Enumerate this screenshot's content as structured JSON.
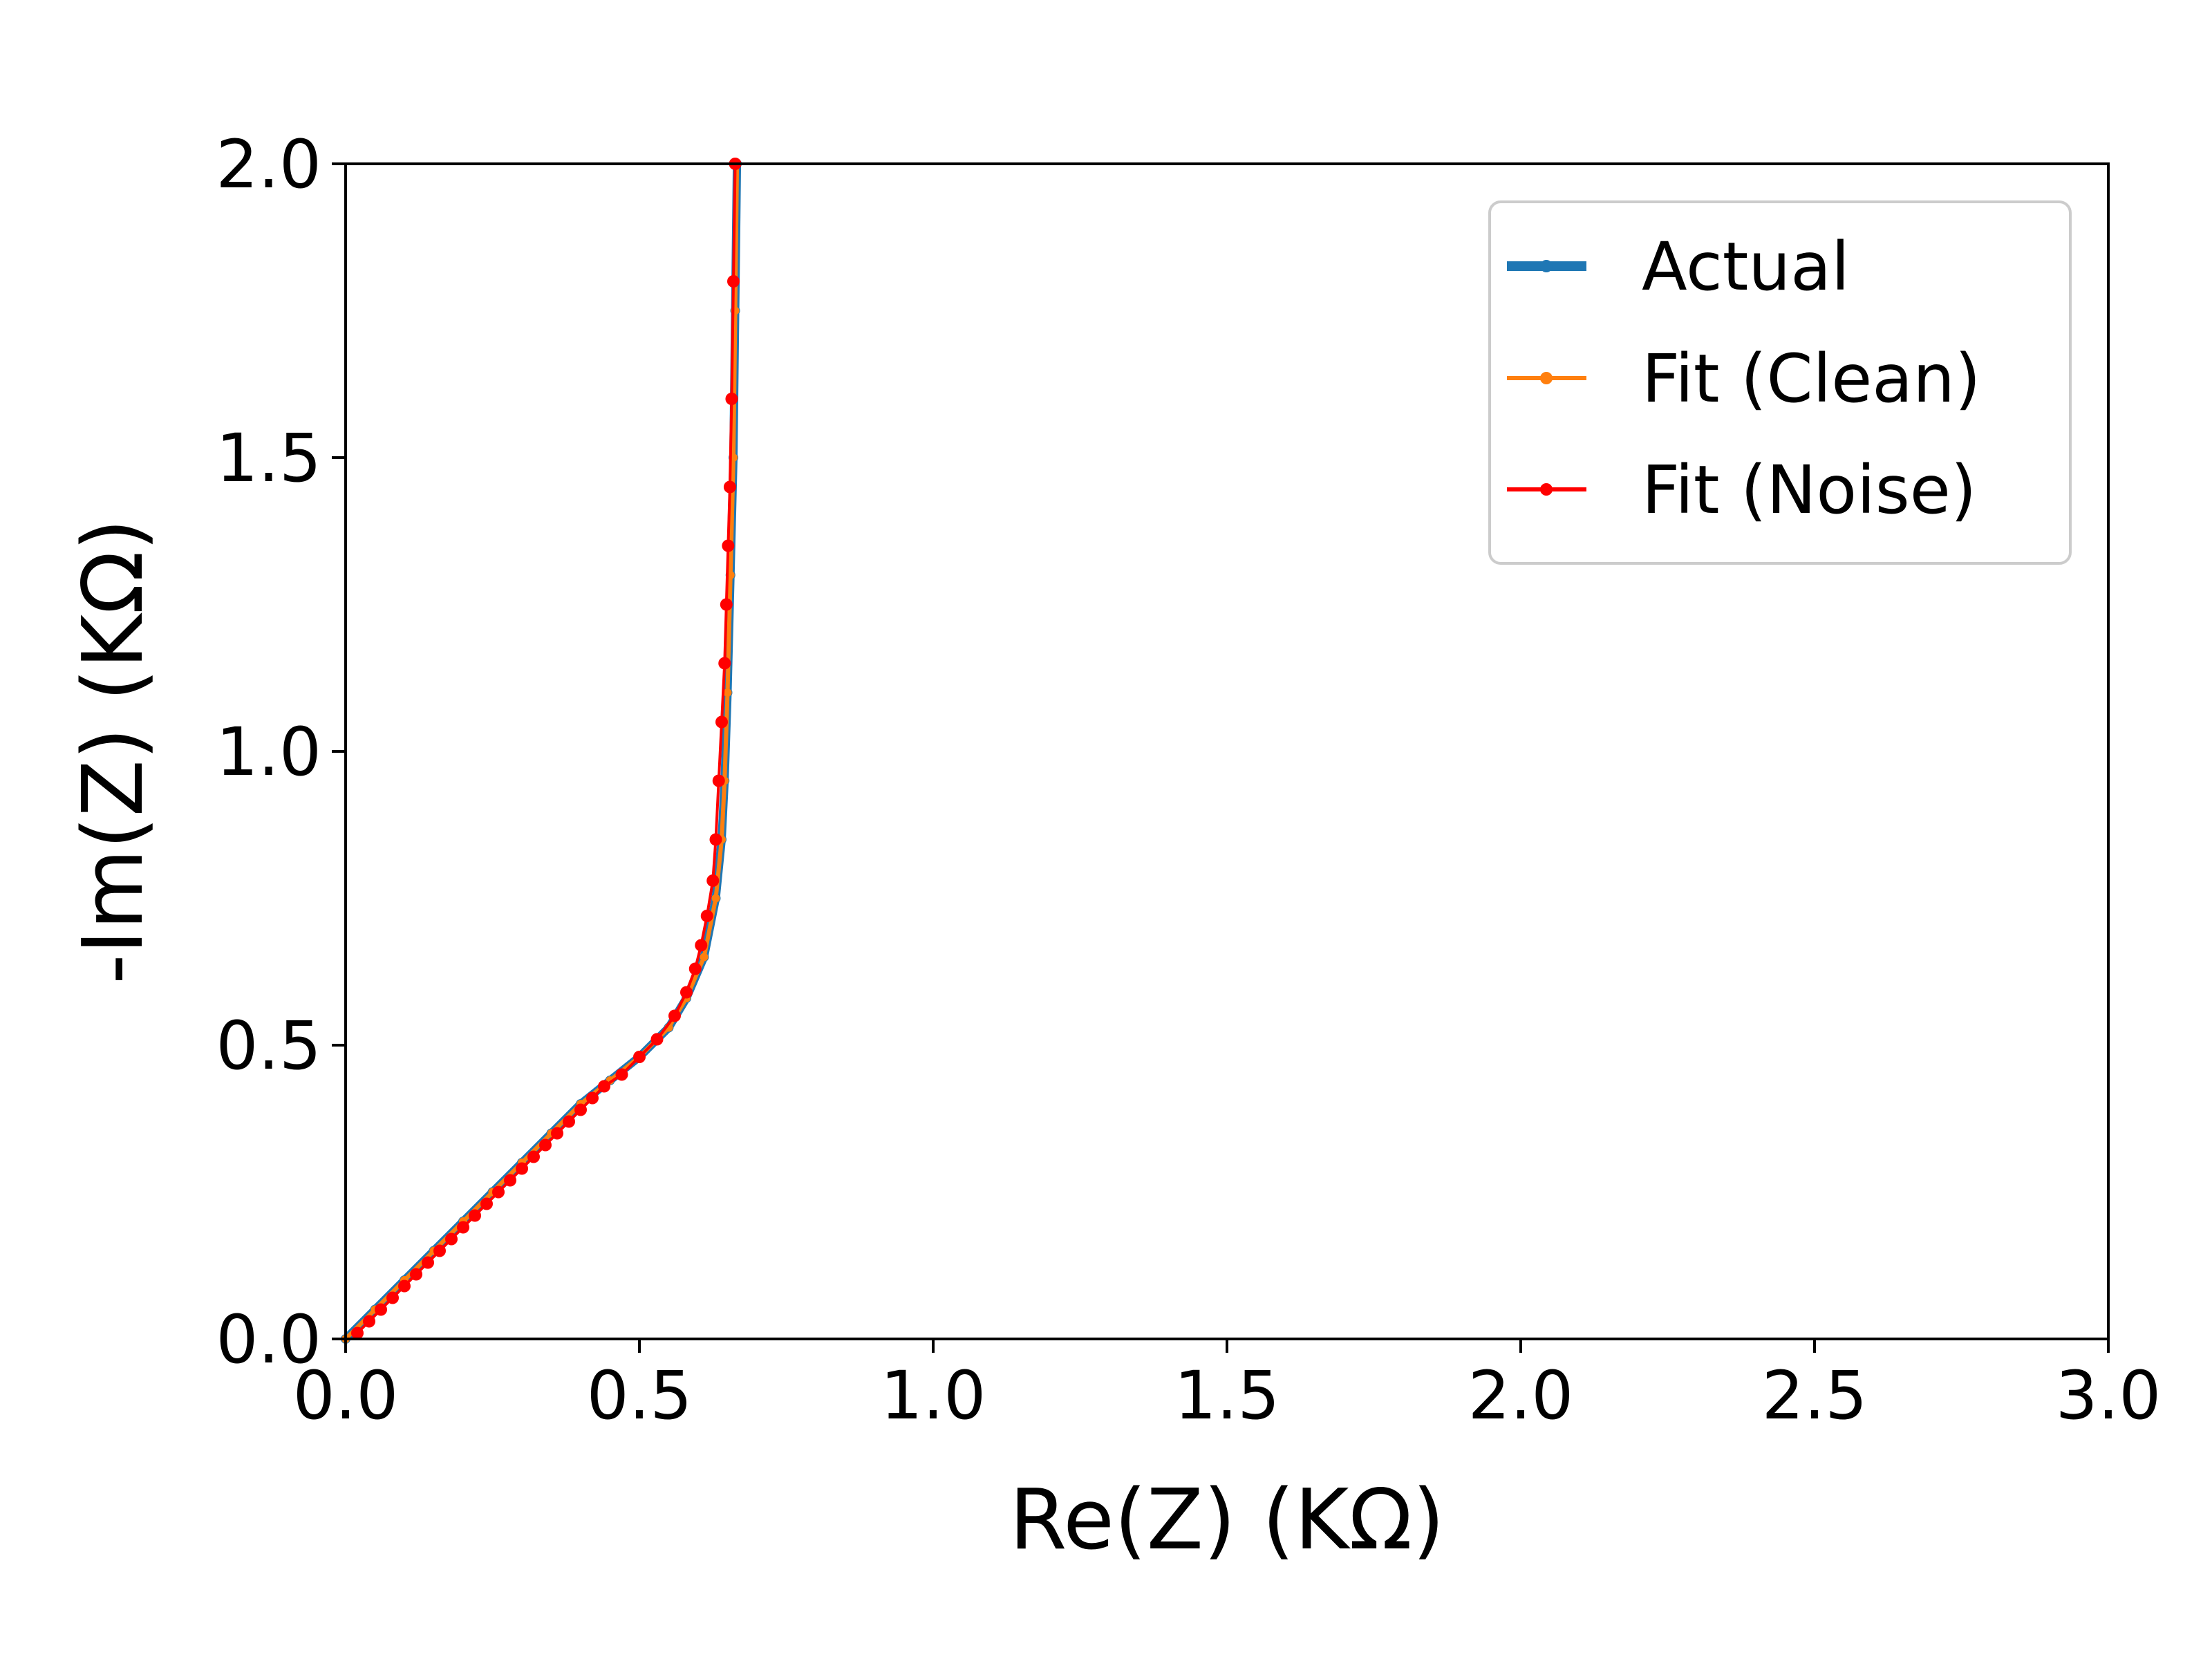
{
  "chart_data": {
    "type": "line",
    "title": "",
    "xlabel": "Re(Z) (KΩ)",
    "ylabel": "-Im(Z) (KΩ)",
    "xlim": [
      0,
      3
    ],
    "ylim": [
      0,
      2
    ],
    "xticks": [
      "0.0",
      "0.5",
      "1.0",
      "1.5",
      "2.0",
      "2.5",
      "3.0"
    ],
    "yticks": [
      "0.0",
      "0.5",
      "1.0",
      "1.5",
      "2.0"
    ],
    "grid": false,
    "legend_position": "top-right",
    "series": [
      {
        "name": "Actual",
        "color": "#1f77b4",
        "x": [
          0.0,
          0.05,
          0.1,
          0.15,
          0.2,
          0.25,
          0.3,
          0.35,
          0.4,
          0.45,
          0.5,
          0.55,
          0.58,
          0.61,
          0.63,
          0.64,
          0.645,
          0.65,
          0.655,
          0.66,
          0.663,
          0.666
        ],
        "y": [
          0.0,
          0.05,
          0.1,
          0.15,
          0.2,
          0.25,
          0.3,
          0.35,
          0.4,
          0.44,
          0.48,
          0.53,
          0.58,
          0.65,
          0.75,
          0.85,
          0.95,
          1.1,
          1.3,
          1.5,
          1.75,
          2.0
        ]
      },
      {
        "name": "Fit (Clean)",
        "color": "#ff7f0e",
        "x": [
          0.0,
          0.05,
          0.1,
          0.15,
          0.2,
          0.25,
          0.3,
          0.35,
          0.4,
          0.45,
          0.5,
          0.55,
          0.58,
          0.61,
          0.63,
          0.64,
          0.645,
          0.65,
          0.655,
          0.66,
          0.663,
          0.666
        ],
        "y": [
          0.0,
          0.05,
          0.1,
          0.15,
          0.2,
          0.25,
          0.3,
          0.35,
          0.4,
          0.44,
          0.48,
          0.53,
          0.58,
          0.65,
          0.75,
          0.85,
          0.95,
          1.1,
          1.3,
          1.5,
          1.75,
          2.0
        ]
      },
      {
        "name": "Fit (Noise)",
        "color": "#ff0000",
        "x": [
          0.02,
          0.04,
          0.06,
          0.08,
          0.1,
          0.12,
          0.14,
          0.16,
          0.18,
          0.2,
          0.22,
          0.24,
          0.26,
          0.28,
          0.3,
          0.32,
          0.34,
          0.36,
          0.38,
          0.4,
          0.42,
          0.44,
          0.47,
          0.5,
          0.53,
          0.56,
          0.58,
          0.595,
          0.605,
          0.615,
          0.625,
          0.63,
          0.635,
          0.64,
          0.645,
          0.648,
          0.651,
          0.654,
          0.657,
          0.66,
          0.663
        ],
        "y": [
          0.01,
          0.03,
          0.05,
          0.07,
          0.09,
          0.11,
          0.13,
          0.15,
          0.17,
          0.19,
          0.21,
          0.23,
          0.25,
          0.27,
          0.29,
          0.31,
          0.33,
          0.35,
          0.37,
          0.39,
          0.41,
          0.43,
          0.45,
          0.48,
          0.51,
          0.55,
          0.59,
          0.63,
          0.67,
          0.72,
          0.78,
          0.85,
          0.95,
          1.05,
          1.15,
          1.25,
          1.35,
          1.45,
          1.6,
          1.8,
          2.0
        ]
      }
    ]
  }
}
